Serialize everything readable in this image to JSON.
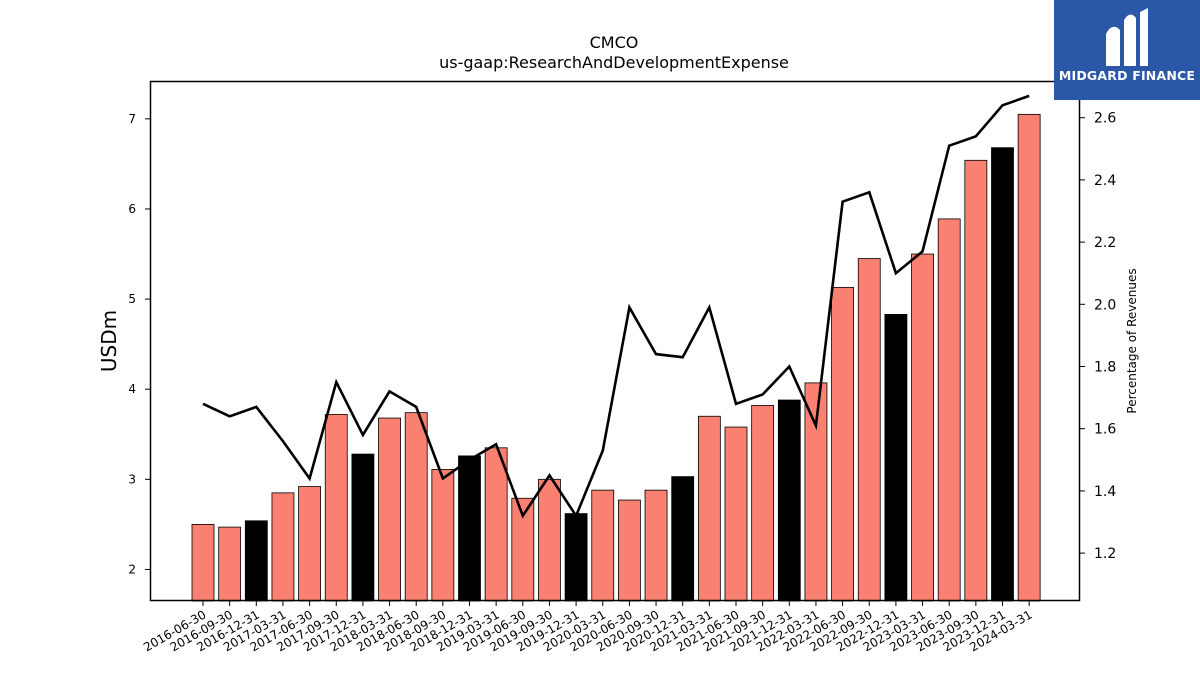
{
  "chart_data": {
    "type": "bar",
    "title": "CMCO",
    "subtitle": "us-gaap:ResearchAndDevelopmentExpense",
    "ylabel": "USDm",
    "y2label": "Percentage of Revenues",
    "ylim": [
      1.65,
      7.42
    ],
    "y2lim": [
      1.046,
      2.718
    ],
    "yticks": [
      2,
      3,
      4,
      5,
      6,
      7
    ],
    "y2ticks": [
      1.2,
      1.4,
      1.6,
      1.8,
      2.0,
      2.2,
      2.4,
      2.6
    ],
    "categories": [
      "2016-06-30",
      "2016-09-30",
      "2016-12-31",
      "2017-03-31",
      "2017-06-30",
      "2017-09-30",
      "2017-12-31",
      "2018-03-31",
      "2018-06-30",
      "2018-09-30",
      "2018-12-31",
      "2019-03-31",
      "2019-06-30",
      "2019-09-30",
      "2019-12-31",
      "2020-03-31",
      "2020-06-30",
      "2020-09-30",
      "2020-12-31",
      "2021-03-31",
      "2021-06-30",
      "2021-09-30",
      "2021-12-31",
      "2022-03-31",
      "2022-06-30",
      "2022-09-30",
      "2022-12-31",
      "2023-03-31",
      "2023-06-30",
      "2023-09-30",
      "2023-12-31",
      "2024-03-31"
    ],
    "series": [
      {
        "type": "bar",
        "axis": "left",
        "values": [
          2.5,
          2.47,
          2.54,
          2.85,
          2.92,
          3.72,
          3.28,
          3.68,
          3.74,
          3.11,
          3.26,
          3.35,
          2.79,
          3.0,
          2.62,
          2.88,
          2.77,
          2.88,
          3.03,
          3.7,
          3.58,
          3.82,
          3.88,
          4.07,
          5.13,
          5.45,
          4.83,
          5.5,
          5.89,
          6.54,
          6.68,
          7.05
        ],
        "colors": [
          "#fa8072",
          "#fa8072",
          "#000000",
          "#fa8072",
          "#fa8072",
          "#fa8072",
          "#000000",
          "#fa8072",
          "#fa8072",
          "#fa8072",
          "#000000",
          "#fa8072",
          "#fa8072",
          "#fa8072",
          "#000000",
          "#fa8072",
          "#fa8072",
          "#fa8072",
          "#000000",
          "#fa8072",
          "#fa8072",
          "#fa8072",
          "#000000",
          "#fa8072",
          "#fa8072",
          "#fa8072",
          "#000000",
          "#fa8072",
          "#fa8072",
          "#fa8072",
          "#000000",
          "#fa8072"
        ]
      },
      {
        "type": "line",
        "axis": "right",
        "color": "#000000",
        "values": [
          1.68,
          1.64,
          1.67,
          1.56,
          1.44,
          1.75,
          1.58,
          1.72,
          1.67,
          1.44,
          1.5,
          1.55,
          1.32,
          1.45,
          1.32,
          1.53,
          1.99,
          1.84,
          1.83,
          1.99,
          1.68,
          1.71,
          1.8,
          1.61,
          2.33,
          2.36,
          2.1,
          2.17,
          2.51,
          2.54,
          2.64,
          2.67
        ]
      }
    ],
    "grid": false,
    "legend": "none"
  },
  "logo": {
    "name": "MIDGARD FINANCE"
  }
}
